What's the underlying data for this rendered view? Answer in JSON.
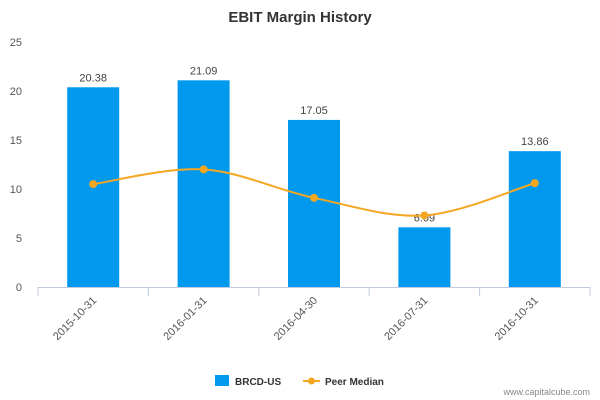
{
  "chart_data": {
    "type": "bar",
    "title": "EBIT Margin History",
    "categories": [
      "2015-10-31",
      "2016-01-31",
      "2016-04-30",
      "2016-07-31",
      "2016-10-31"
    ],
    "series": [
      {
        "name": "BRCD-US",
        "kind": "bar",
        "color": "#0099ee",
        "values": [
          20.38,
          21.09,
          17.05,
          6.09,
          13.86
        ],
        "labels": [
          "20.38",
          "21.09",
          "17.05",
          "6.09",
          "13.86"
        ]
      },
      {
        "name": "Peer Median",
        "kind": "line",
        "color": "#f5a623",
        "values": [
          10.5,
          12.0,
          9.1,
          7.3,
          10.6
        ]
      }
    ],
    "yticks": [
      "0",
      "5",
      "10",
      "15",
      "20",
      "25"
    ],
    "ylim": [
      0,
      25
    ],
    "xlabel": "",
    "ylabel": "",
    "grid": false,
    "legend": "bottom-center"
  },
  "footer": {
    "credit": "www.capitalcube.com"
  }
}
